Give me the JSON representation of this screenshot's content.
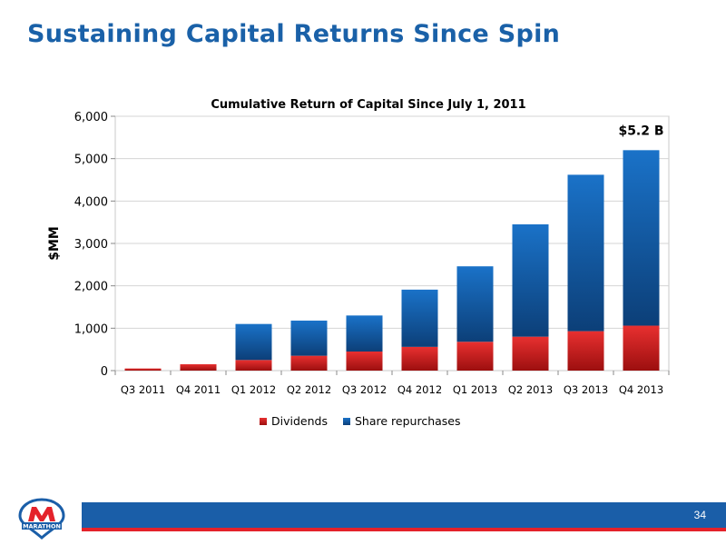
{
  "slide": {
    "title": "Sustaining Capital Returns Since Spin",
    "page_number": "34"
  },
  "logo": {
    "text": "MARATHON",
    "icon": "marathon-logo-icon"
  },
  "colors": {
    "title": "#1a61a8",
    "dividends": "#d42020",
    "share_repurchases": "#1565c0",
    "footer_bar": "#1a5ea8",
    "footer_accent": "#e4222a"
  },
  "chart_data": {
    "type": "bar",
    "stacked": true,
    "title": "Cumulative Return of Capital Since July 1, 2011",
    "xlabel": "",
    "ylabel": "$MM",
    "ylim": [
      0,
      6000
    ],
    "yticks": [
      "0",
      "1,000",
      "2,000",
      "3,000",
      "4,000",
      "5,000",
      "6,000"
    ],
    "ytick_values": [
      0,
      1000,
      2000,
      3000,
      4000,
      5000,
      6000
    ],
    "grid": true,
    "categories": [
      "Q3 2011",
      "Q4 2011",
      "Q1 2012",
      "Q2 2012",
      "Q3 2012",
      "Q4 2012",
      "Q1 2013",
      "Q2 2013",
      "Q3 2013",
      "Q4 2013"
    ],
    "series": [
      {
        "name": "Dividends",
        "values": [
          50,
          150,
          250,
          350,
          450,
          560,
          680,
          800,
          930,
          1060
        ]
      },
      {
        "name": "Share repurchases",
        "values": [
          0,
          0,
          850,
          830,
          850,
          1350,
          1780,
          2650,
          3690,
          4140
        ]
      }
    ],
    "legend": "bottom",
    "annotations": [
      {
        "text": "$5.2 B",
        "category": "Q4 2013"
      }
    ]
  }
}
